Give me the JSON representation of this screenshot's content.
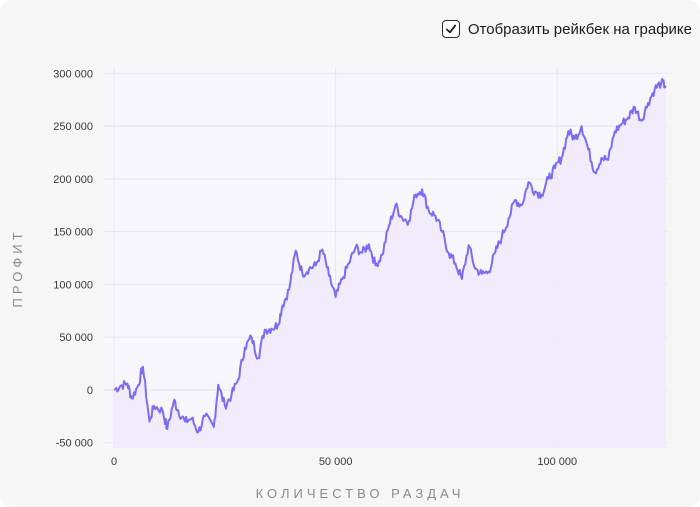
{
  "rakeback_toggle": {
    "label": "Отобразить рейкбек на графике",
    "checked": true
  },
  "chart_data": {
    "type": "line",
    "xlabel": "КОЛИЧЕСТВО РАЗДАЧ",
    "ylabel": "ПРОФИТ",
    "xlim": [
      -2500,
      125000
    ],
    "ylim": [
      -55000,
      305000
    ],
    "x_ticks": [
      0,
      50000,
      100000
    ],
    "x_tick_labels": [
      "0",
      "50 000",
      "100 000"
    ],
    "y_ticks": [
      -50000,
      0,
      50000,
      100000,
      150000,
      200000,
      250000,
      300000
    ],
    "y_tick_labels": [
      "-50 000",
      "0",
      "50 000",
      "100 000",
      "150 000",
      "200 000",
      "250 000",
      "300 000"
    ],
    "grid": true,
    "line_color": "#7b6cf0",
    "fill_color": "#efeafc",
    "series": [
      {
        "x": [
          0,
          1500,
          3000,
          4000,
          5500,
          6500,
          8000,
          9000,
          11000,
          12000,
          13500,
          14500,
          16000,
          17500,
          19000,
          20500,
          22500,
          23500,
          25000,
          26500,
          28000,
          29500,
          31000,
          32500,
          34000,
          35500,
          37000,
          38000,
          39500,
          41000,
          42500,
          44000,
          45500,
          47000,
          48500,
          50000,
          51500,
          53000,
          54500,
          56000,
          57500,
          59000,
          60500,
          62000,
          63500,
          65000,
          66500,
          68000,
          69500,
          71000,
          72500,
          74000,
          75500,
          77000,
          78500,
          80000,
          81500,
          83000,
          84500,
          86000,
          87500,
          89000,
          90500,
          92000,
          93500,
          95000,
          96500,
          98000,
          99500,
          101000,
          102500,
          104000,
          105500,
          107000,
          108500,
          110000,
          111500,
          113000,
          114500,
          116000,
          117500,
          119000,
          120500,
          122000,
          123500,
          124500
        ],
        "y": [
          0,
          4000,
          6000,
          -8000,
          5000,
          22000,
          -30000,
          -15000,
          -20000,
          -37000,
          -10000,
          -20000,
          -30000,
          -27000,
          -40000,
          -25000,
          -35000,
          5000,
          -15000,
          -5000,
          10000,
          40000,
          50000,
          30000,
          57000,
          58000,
          62000,
          80000,
          95000,
          132000,
          110000,
          115000,
          118000,
          133000,
          108000,
          88000,
          105000,
          120000,
          135000,
          130000,
          138000,
          118000,
          128000,
          155000,
          175000,
          163000,
          160000,
          185000,
          190000,
          170000,
          165000,
          150000,
          130000,
          120000,
          105000,
          137000,
          115000,
          110000,
          112000,
          130000,
          145000,
          162000,
          180000,
          175000,
          197000,
          188000,
          185000,
          200000,
          210000,
          220000,
          245000,
          238000,
          250000,
          228000,
          206000,
          220000,
          218000,
          245000,
          252000,
          258000,
          268000,
          255000,
          272000,
          285000,
          291000,
          288000
        ]
      }
    ]
  }
}
